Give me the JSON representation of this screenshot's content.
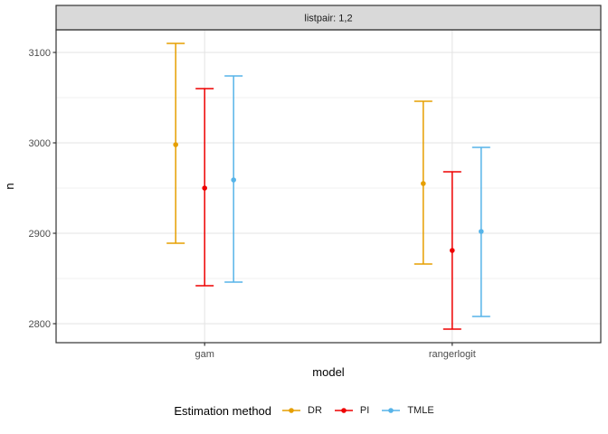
{
  "chart_data": {
    "type": "pointrange",
    "facet_label": "listpair: 1,2",
    "xlabel": "model",
    "ylabel": "n",
    "categories": [
      "gam",
      "rangerlogit"
    ],
    "y_major_ticks": [
      2800,
      2900,
      3000,
      3100
    ],
    "y_tick_labels": [
      "2800",
      "2900",
      "3000",
      "3100"
    ],
    "y_minor_ticks": [
      2850,
      2950,
      3050
    ],
    "ylim": [
      2779,
      3125
    ],
    "grid": true,
    "legend_title": "Estimation method",
    "legend_position": "bottom",
    "series": [
      {
        "name": "DR",
        "color": "#E69F00",
        "points": [
          {
            "category": "gam",
            "estimate": 2998,
            "lower": 2889,
            "upper": 3110
          },
          {
            "category": "rangerlogit",
            "estimate": 2955,
            "lower": 2866,
            "upper": 3046
          }
        ]
      },
      {
        "name": "PI",
        "color": "#EE0000",
        "points": [
          {
            "category": "gam",
            "estimate": 2950,
            "lower": 2842,
            "upper": 3060
          },
          {
            "category": "rangerlogit",
            "estimate": 2881,
            "lower": 2794,
            "upper": 2968
          }
        ]
      },
      {
        "name": "TMLE",
        "color": "#56B4E9",
        "points": [
          {
            "category": "gam",
            "estimate": 2959,
            "lower": 2846,
            "upper": 3074
          },
          {
            "category": "rangerlogit",
            "estimate": 2902,
            "lower": 2808,
            "upper": 2995
          }
        ]
      }
    ],
    "style_colors": {
      "strip_fill": "#d9d9d9",
      "panel_border": "#333333",
      "grid_major": "#e3e3e3",
      "grid_minor": "#f1f1f1",
      "axis_text": "#4d4d4d"
    }
  }
}
